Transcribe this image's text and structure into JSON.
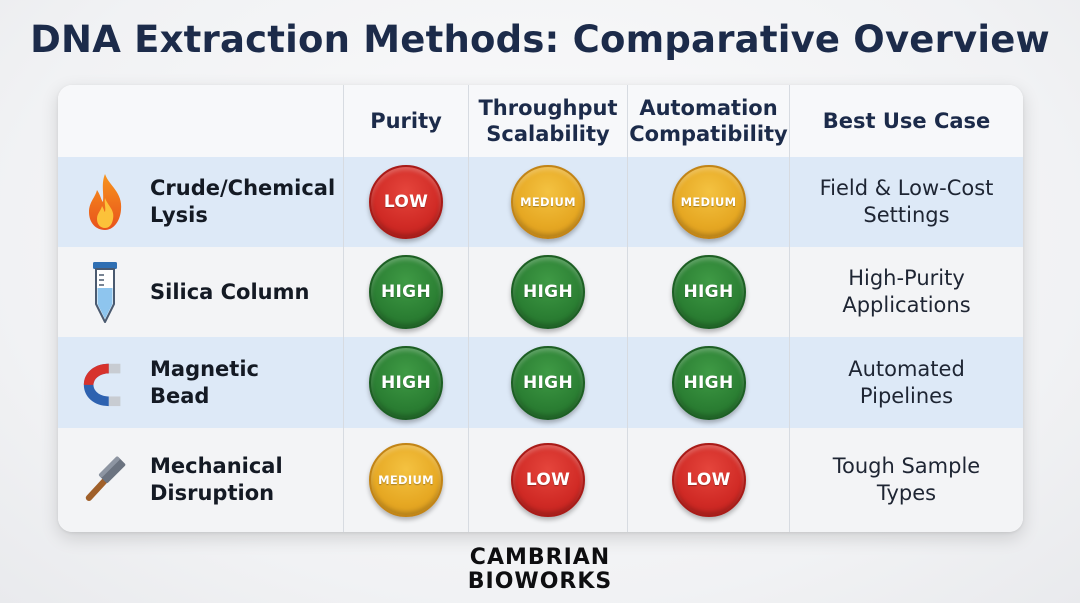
{
  "title": "DNA Extraction Methods: Comparative Overview",
  "headers": [
    "",
    "Purity",
    "Throughput Scalability",
    "Automation Compatibility",
    "Best Use Case"
  ],
  "header_lines": {
    "purity": [
      "Purity"
    ],
    "throughput": [
      "Throughput",
      "Scalability"
    ],
    "automation": [
      "Automation",
      "Compatibility"
    ],
    "use_case": [
      "Best Use Case"
    ]
  },
  "rows": [
    {
      "icon": "flame-icon",
      "name_lines": [
        "Crude/Chemical",
        "Lysis"
      ],
      "purity": "LOW",
      "throughput": "MEDIUM",
      "automation": "MEDIUM",
      "use_case_lines": [
        "Field & Low-Cost",
        "Settings"
      ]
    },
    {
      "icon": "test-tube-icon",
      "name_lines": [
        "Silica Column"
      ],
      "purity": "HIGH",
      "throughput": "HIGH",
      "automation": "HIGH",
      "use_case_lines": [
        "High-Purity",
        "Applications"
      ]
    },
    {
      "icon": "magnet-icon",
      "name_lines": [
        "Magnetic",
        "Bead"
      ],
      "purity": "HIGH",
      "throughput": "HIGH",
      "automation": "HIGH",
      "use_case_lines": [
        "Automated",
        "Pipelines"
      ]
    },
    {
      "icon": "hammer-icon",
      "name_lines": [
        "Mechanical",
        "Disruption"
      ],
      "purity": "MEDIUM",
      "throughput": "LOW",
      "automation": "LOW",
      "use_case_lines": [
        "Tough Sample",
        "Types"
      ]
    }
  ],
  "colors": {
    "low": "#d02a25",
    "medium": "#e6a823",
    "high": "#2b7f33",
    "title": "#1c2b4a",
    "row_highlight": "#dde9f7"
  },
  "logo_lines": [
    "CAMBRIAN",
    "BIOWORKS"
  ]
}
